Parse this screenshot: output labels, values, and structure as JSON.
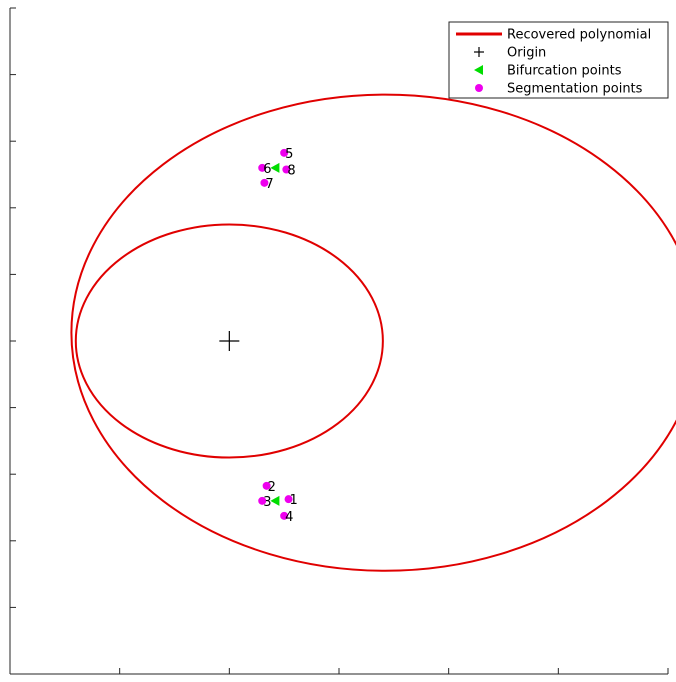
{
  "chart_data": {
    "type": "line",
    "title": "",
    "xlabel": "",
    "ylabel": "",
    "xlim": [
      -1,
      2.0
    ],
    "ylim": [
      -2.0,
      2.0
    ],
    "x_ticks": [
      -1,
      -0.5,
      0,
      0.5,
      1.0,
      1.5,
      2.0
    ],
    "y_ticks": [
      -2.0,
      -1.6,
      -1.2,
      -0.8,
      -0.4,
      0,
      0.4,
      0.8,
      1.2,
      1.6,
      2.0
    ],
    "grid": false,
    "legend_position": "top-right",
    "colors": {
      "curve": "#e00000",
      "origin": "#000000",
      "bifurcation": "#00dd00",
      "segmentation": "#ee00ee"
    },
    "series": [
      {
        "name": "Recovered polynomial",
        "kind": "curve",
        "circles": [
          {
            "center": [
              0,
              0
            ],
            "radius": 0.7
          },
          {
            "center": [
              0.71,
              0.05
            ],
            "radius": 1.43
          }
        ]
      },
      {
        "name": "Origin",
        "kind": "marker",
        "marker": "plus",
        "points": [
          [
            0,
            0
          ]
        ]
      },
      {
        "name": "Bifurcation points",
        "kind": "marker",
        "marker": "triangle-left",
        "points": [
          [
            0.21,
            1.04
          ],
          [
            0.21,
            -0.96
          ]
        ]
      },
      {
        "name": "Segmentation points",
        "kind": "marker",
        "marker": "circle",
        "points": [
          {
            "x": 0.27,
            "y": -0.95,
            "label": "1"
          },
          {
            "x": 0.17,
            "y": -0.87,
            "label": "2"
          },
          {
            "x": 0.15,
            "y": -0.96,
            "label": "3"
          },
          {
            "x": 0.25,
            "y": -1.05,
            "label": "4"
          },
          {
            "x": 0.25,
            "y": 1.13,
            "label": "5"
          },
          {
            "x": 0.15,
            "y": 1.04,
            "label": "6"
          },
          {
            "x": 0.16,
            "y": 0.95,
            "label": "7"
          },
          {
            "x": 0.26,
            "y": 1.03,
            "label": "8"
          }
        ]
      }
    ]
  }
}
